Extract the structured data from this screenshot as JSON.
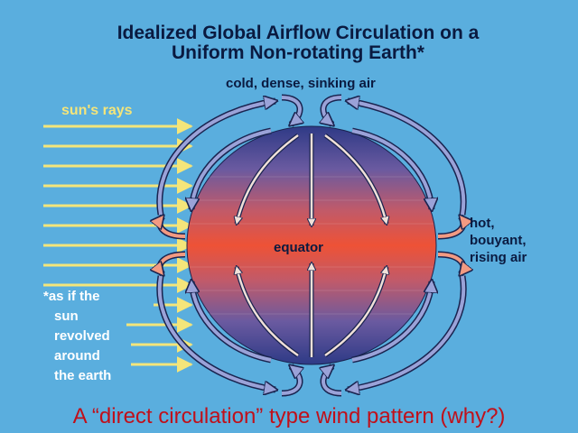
{
  "title": {
    "line1": "Idealized Global Airflow Circulation on a",
    "line2": "Uniform Non-rotating Earth*"
  },
  "labels": {
    "top": "cold, dense, sinking air",
    "sun_rays": "sun's rays",
    "equator": "equator",
    "right": [
      "hot,",
      "bouyant,",
      "rising air"
    ]
  },
  "footnote": {
    "star": "*",
    "lines": [
      "as if the",
      "sun",
      "revolved",
      "around",
      "the earth"
    ]
  },
  "caption": "A “direct circulation” type wind pattern (why?)",
  "colors": {
    "background": "#5aaede",
    "sun_rays": "#f4e57a",
    "globe_warm": "#e8503a",
    "globe_cold": "#3a4a8e",
    "arrow_cool": "#8a94cc",
    "arrow_warm": "#f0907a",
    "caption": "#c0101a"
  },
  "icons": [
    "sun-ray-arrow",
    "airflow-arrow",
    "globe"
  ]
}
